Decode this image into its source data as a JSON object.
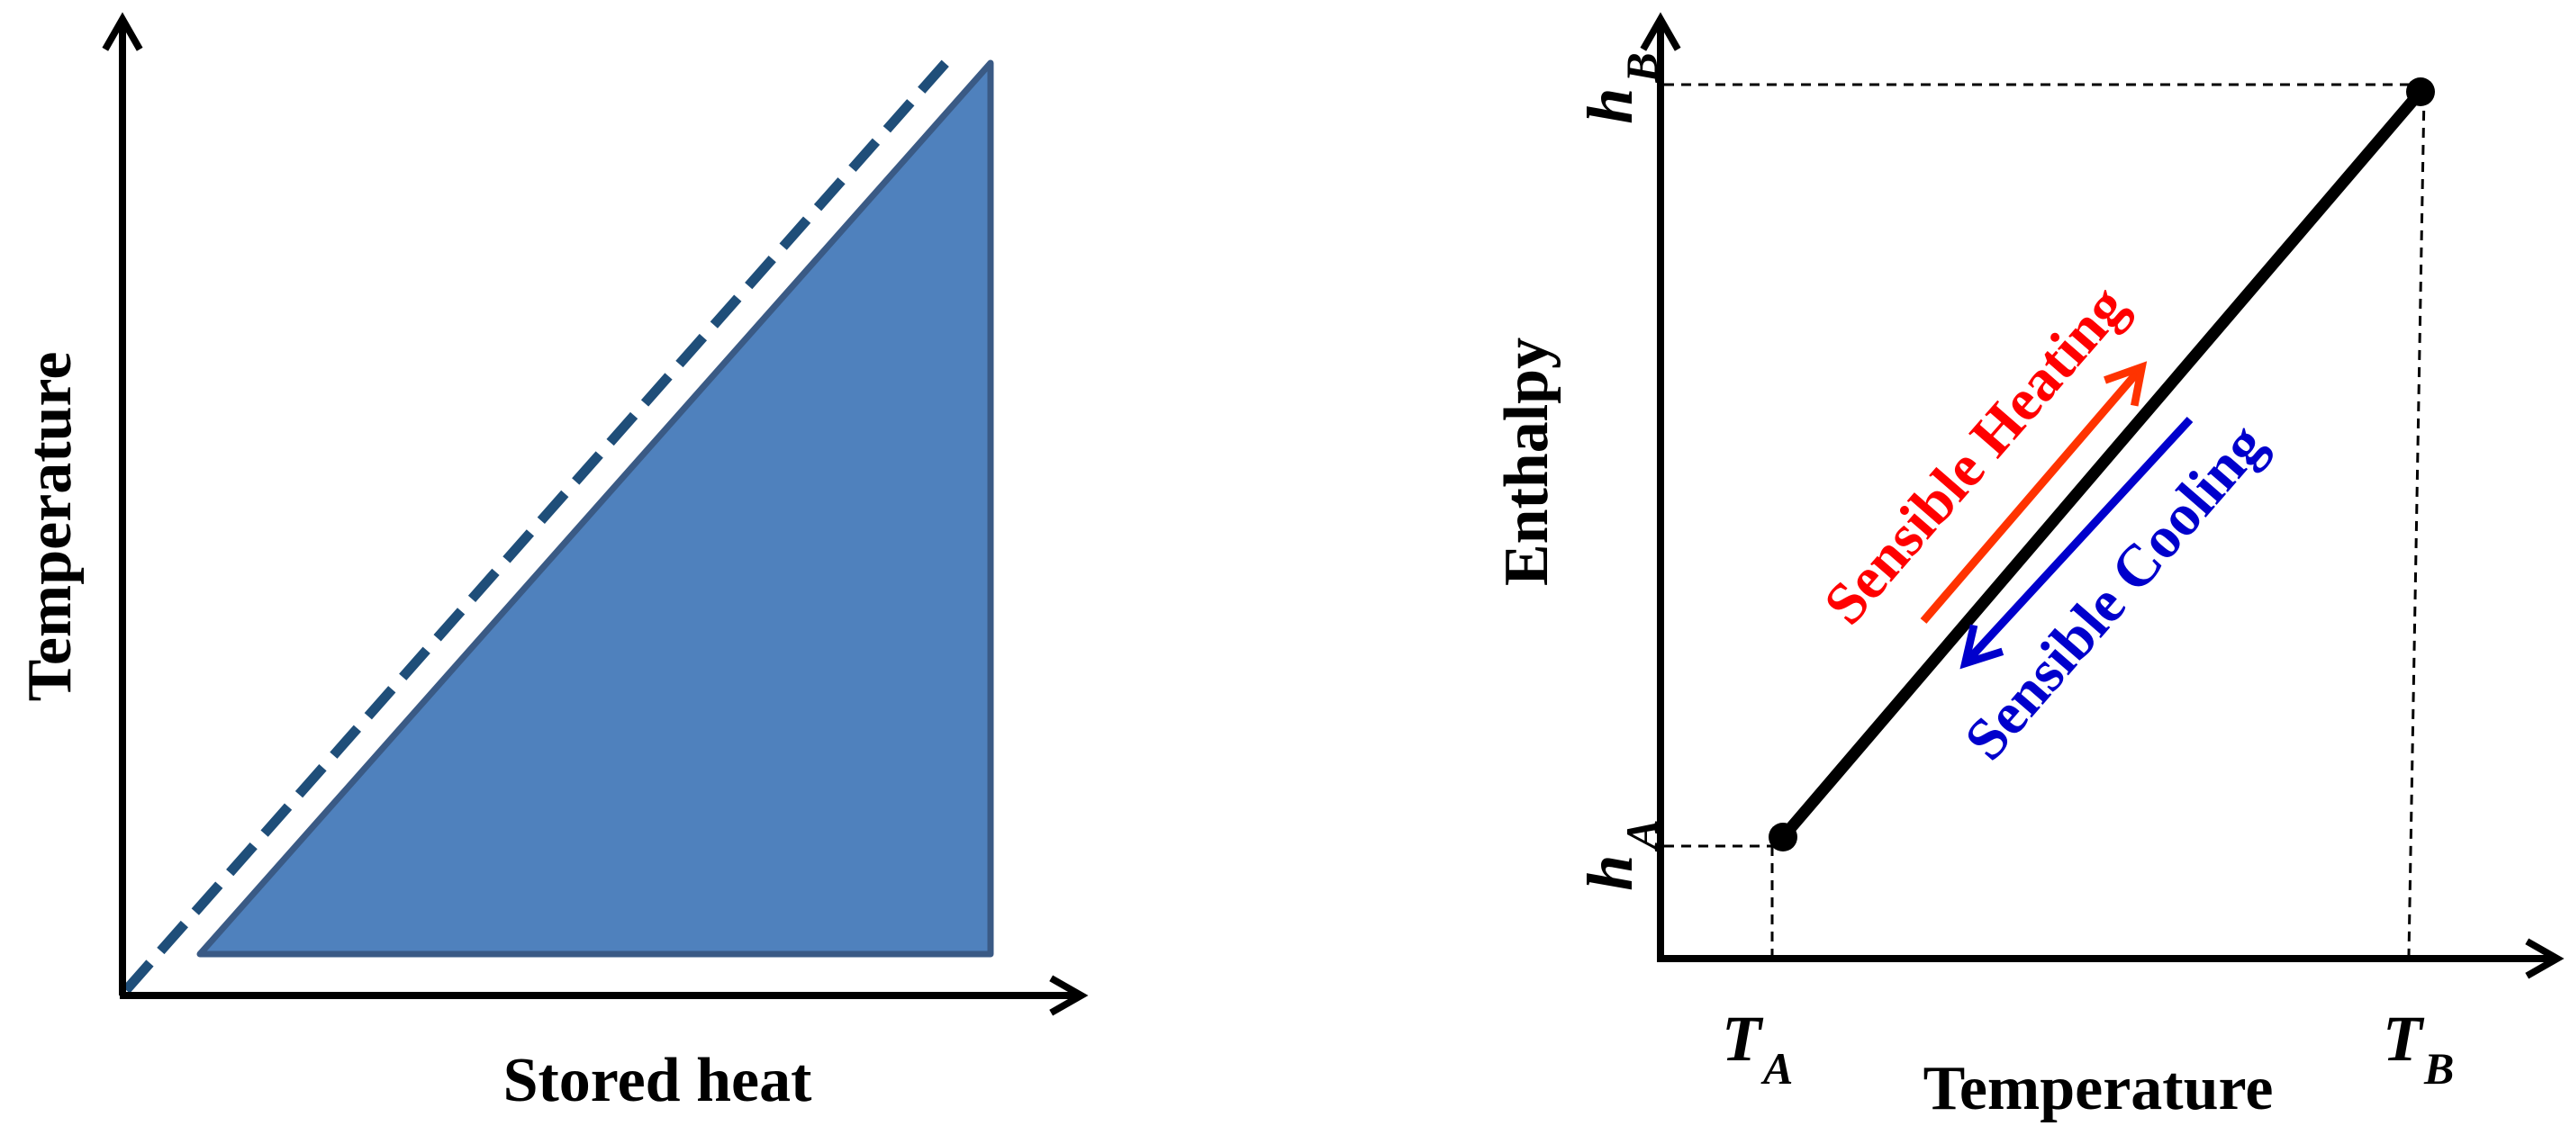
{
  "left_panel": {
    "y_axis_label": "Temperature",
    "x_axis_label": "Stored heat",
    "fill_color": "#4f81bd",
    "edge_color": "#3a5a85",
    "dash_color": "#1f4e79"
  },
  "right_panel": {
    "y_axis_label": "Enthalpy",
    "x_axis_label": "Temperature",
    "h_a": {
      "base": "h",
      "sub": "A"
    },
    "h_b": {
      "base": "h",
      "sub": "B"
    },
    "t_a": {
      "base": "T",
      "sub": "A"
    },
    "t_b": {
      "base": "T",
      "sub": "B"
    },
    "heating_label": "Sensible Heating",
    "cooling_label": "Sensible Cooling",
    "heating_color": "#ff0000",
    "heating_arrow_color": "#ff3300",
    "cooling_color": "#0000cc"
  }
}
